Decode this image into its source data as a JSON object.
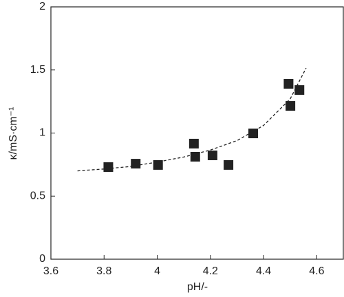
{
  "chart_data": {
    "type": "scatter",
    "x_label": "pH/-",
    "y_label": "κ/mS·cm⁻¹",
    "xlim": [
      3.6,
      4.7
    ],
    "xticks": [
      3.6,
      3.8,
      4,
      4.2,
      4.4,
      4.6
    ],
    "ylim": [
      0,
      2
    ],
    "yticks": [
      0,
      0.5,
      1,
      1.5,
      2
    ],
    "series": [
      {
        "color": "#222222",
        "marker": "square",
        "x": [
          3.816,
          3.919,
          4.003,
          4.138,
          4.143,
          4.208,
          4.268,
          4.361,
          4.494,
          4.501,
          4.535
        ],
        "values": [
          0.73,
          0.757,
          0.747,
          0.916,
          0.812,
          0.823,
          0.747,
          0.997,
          1.39,
          1.215,
          1.341
        ]
      },
      {
        "color": "#222222",
        "line": "dashed",
        "x": [
          3.7,
          3.8,
          3.9,
          4.0,
          4.1,
          4.2,
          4.3,
          4.4,
          4.5,
          4.56
        ],
        "values": [
          0.7,
          0.715,
          0.735,
          0.77,
          0.81,
          0.865,
          0.94,
          1.06,
          1.27,
          1.515
        ]
      }
    ]
  }
}
